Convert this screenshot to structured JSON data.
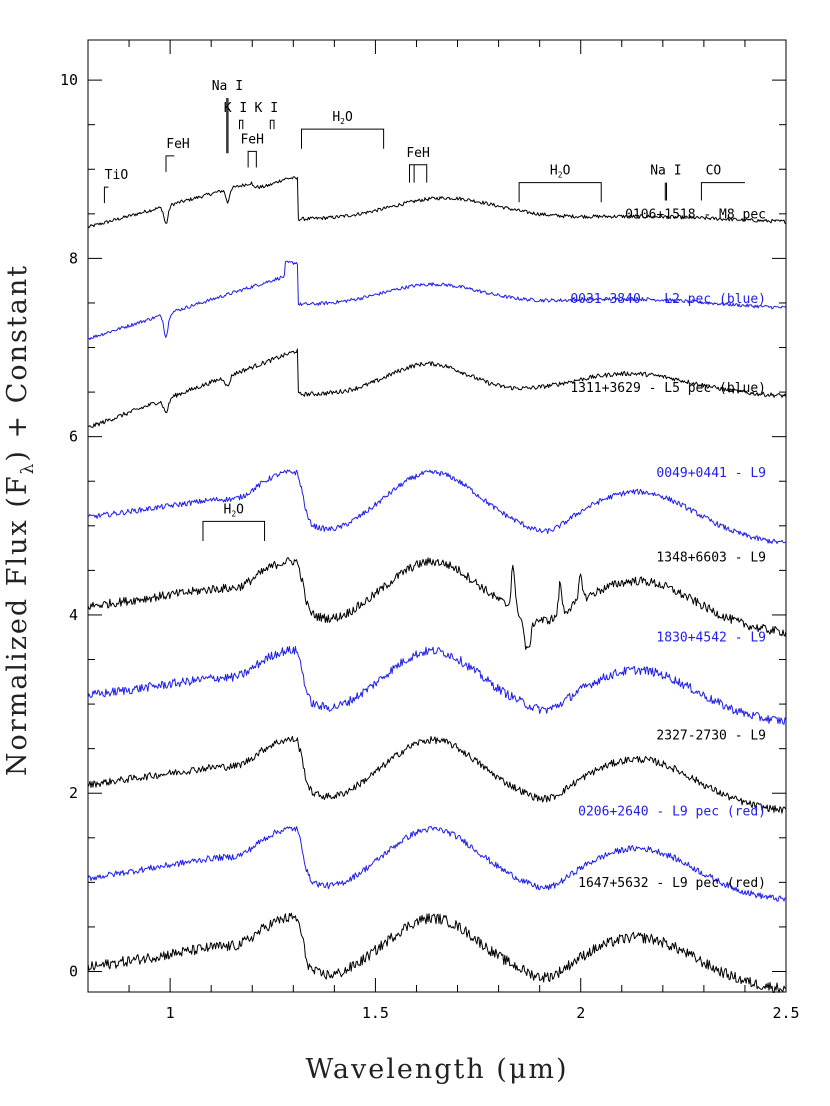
{
  "chart_data": {
    "type": "line",
    "title": "",
    "xlabel": "Wavelength (μm)",
    "ylabel_main": "Normalized Flux (F",
    "ylabel_sub": "λ",
    "ylabel_tail": ") + Constant",
    "xlim": [
      0.8,
      2.5
    ],
    "ylim": [
      -0.23,
      10.45
    ],
    "xticks_major": [
      1,
      1.5,
      2,
      2.5
    ],
    "xtick_labels": [
      "1",
      "1.5",
      "2",
      "2.5"
    ],
    "yticks_major": [
      0,
      2,
      4,
      6,
      8,
      10
    ],
    "ytick_labels": [
      "0",
      "2",
      "4",
      "6",
      "8",
      "10"
    ],
    "grid": false,
    "legend": "none",
    "colors": {
      "black": "#000000",
      "blue": "#1f1fe6"
    },
    "series": [
      {
        "name": "0106+1518 - M8 pec",
        "color": "black",
        "offset": 8.0,
        "label_y": 8.45,
        "profile": "m8",
        "noise": 0.02
      },
      {
        "name": "0031-3840 - L2 pec (blue)",
        "color": "blue",
        "offset": 6.95,
        "label_y": 7.5,
        "profile": "l2",
        "noise": 0.02
      },
      {
        "name": "1311+3629 - L5 pec (blue)",
        "color": "black",
        "offset": 5.85,
        "label_y": 6.5,
        "profile": "l5",
        "noise": 0.025
      },
      {
        "name": "0049+0441 - L9",
        "color": "blue",
        "offset": 4.85,
        "label_y": 5.55,
        "profile": "l9",
        "noise": 0.03
      },
      {
        "name": "1348+6603 - L9",
        "color": "black",
        "offset": 3.85,
        "label_y": 4.6,
        "profile": "l9noisy",
        "noise": 0.05
      },
      {
        "name": "1830+4542 - L9",
        "color": "blue",
        "offset": 2.85,
        "label_y": 3.7,
        "profile": "l9",
        "noise": 0.05
      },
      {
        "name": "2327-2730 - L9",
        "color": "black",
        "offset": 1.85,
        "label_y": 2.6,
        "profile": "l9",
        "noise": 0.04
      },
      {
        "name": "0206+2640 - L9 pec (red)",
        "color": "blue",
        "offset": 0.85,
        "label_y": 1.75,
        "profile": "l9red",
        "noise": 0.035
      },
      {
        "name": "1647+5632 - L9 pec (red)",
        "color": "black",
        "offset": -0.15,
        "label_y": 0.95,
        "profile": "l9red",
        "noise": 0.06
      }
    ],
    "annotations": [
      {
        "label": "TiO",
        "kind": "tick",
        "x": 0.84,
        "x2": 0.85,
        "y": 8.8,
        "len": 0.18
      },
      {
        "label": "FeH",
        "kind": "tick",
        "x": 0.99,
        "x2": 1.01,
        "y": 9.15,
        "len": 0.18
      },
      {
        "label": "Na I",
        "kind": "double",
        "x": 1.138,
        "x2": 1.141,
        "y": 9.8,
        "len": 0.62
      },
      {
        "label": "K I",
        "kind": "pair",
        "x": 1.169,
        "x2": 1.177,
        "y": 9.55,
        "len": 0.1,
        "labelpos": "left"
      },
      {
        "label": "K I",
        "kind": "pair",
        "x": 1.244,
        "x2": 1.253,
        "y": 9.55,
        "len": 0.1,
        "labelpos": "left"
      },
      {
        "label": "FeH",
        "kind": "bracket",
        "x": 1.19,
        "x2": 1.21,
        "y": 9.2,
        "len": 0.18
      },
      {
        "label": "H",
        "sub": "2",
        "tail": "O",
        "kind": "bracket",
        "x": 1.32,
        "x2": 1.52,
        "y": 9.45,
        "len": 0.22
      },
      {
        "label": "FeH",
        "kind": "triple",
        "x": 1.583,
        "x2": 1.625,
        "y": 9.05,
        "len": 0.2
      },
      {
        "label": "H",
        "sub": "2",
        "tail": "O",
        "kind": "bracket",
        "x": 1.85,
        "x2": 2.05,
        "y": 8.85,
        "len": 0.22
      },
      {
        "label": "Na I",
        "kind": "double",
        "x": 2.206,
        "x2": 2.209,
        "y": 8.85,
        "len": 0.2
      },
      {
        "label": "CO",
        "kind": "tick",
        "x": 2.294,
        "x2": 2.4,
        "y": 8.85,
        "len": 0.2
      },
      {
        "label": "H",
        "sub": "2",
        "tail": "O",
        "kind": "bracket",
        "x": 1.08,
        "x2": 1.23,
        "y": 5.05,
        "len": 0.22
      }
    ]
  }
}
